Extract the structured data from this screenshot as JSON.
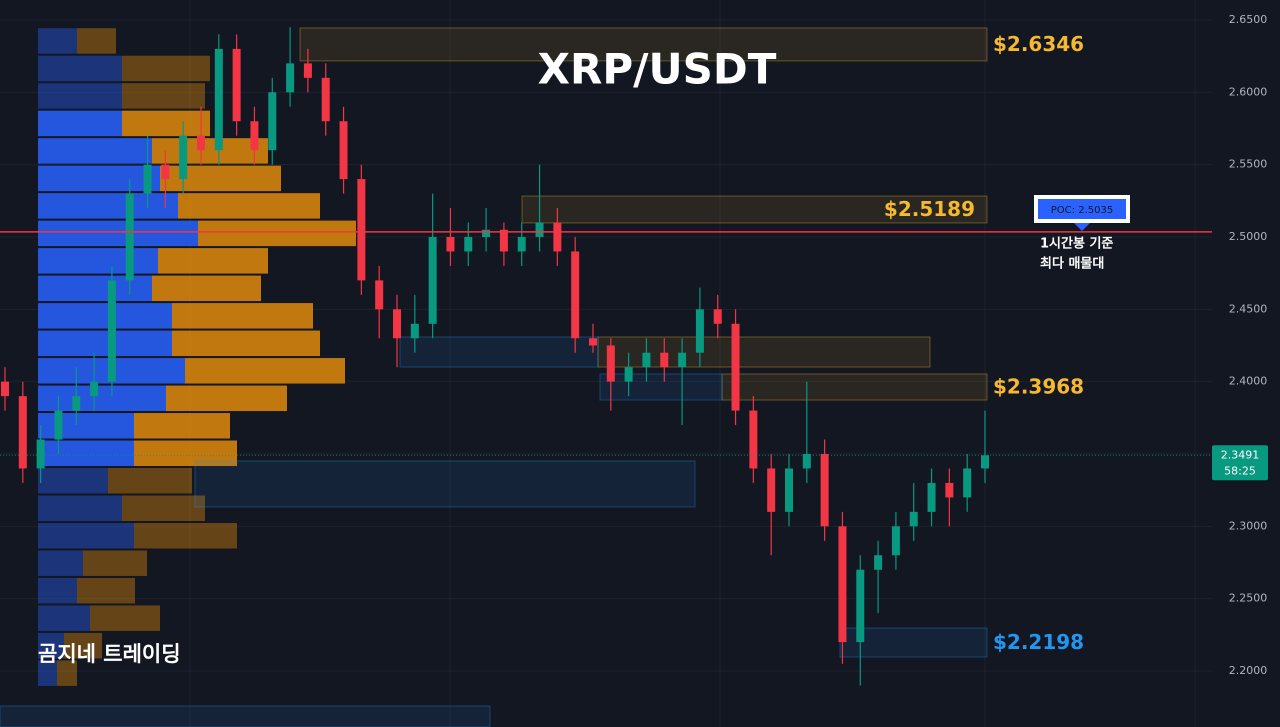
{
  "chart_data": {
    "type": "candlestick",
    "title": "XRP/USDT",
    "watermark": "곰지네 트레이딩",
    "ylim": [
      2.1613,
      2.6638
    ],
    "yticks": [
      {
        "value": 2.2,
        "label": "2.2000"
      },
      {
        "value": 2.25,
        "label": "2.2500"
      },
      {
        "value": 2.3,
        "label": "2.3000"
      },
      {
        "value": 2.35,
        "label": "2.3500"
      },
      {
        "value": 2.4,
        "label": "2.4000"
      },
      {
        "value": 2.45,
        "label": "2.4500"
      },
      {
        "value": 2.5,
        "label": "2.5000"
      },
      {
        "value": 2.55,
        "label": "2.5500"
      },
      {
        "value": 2.6,
        "label": "2.6000"
      },
      {
        "value": 2.65,
        "label": "2.6500"
      }
    ],
    "grid": true,
    "up_color": "#089981",
    "down_color": "#f23645",
    "open": [
      2.4,
      2.39,
      2.34,
      2.36,
      2.38,
      2.39,
      2.4,
      2.47,
      2.53,
      2.55,
      2.54,
      2.57,
      2.56,
      2.63,
      2.58,
      2.56,
      2.6,
      2.62,
      2.61,
      2.58,
      2.54,
      2.47,
      2.45,
      2.43,
      2.44,
      2.5,
      2.49,
      2.5,
      2.505,
      2.49,
      2.5,
      2.51,
      2.49,
      2.43,
      2.425,
      2.4,
      2.41,
      2.42,
      2.41,
      2.42,
      2.45,
      2.44,
      2.38,
      2.34,
      2.31,
      2.34,
      2.35,
      2.3,
      2.22,
      2.27,
      2.28,
      2.3,
      2.31,
      2.33,
      2.32,
      2.34
    ],
    "high": [
      2.41,
      2.4,
      2.37,
      2.39,
      2.41,
      2.42,
      2.48,
      2.54,
      2.57,
      2.56,
      2.58,
      2.59,
      2.64,
      2.64,
      2.59,
      2.61,
      2.645,
      2.63,
      2.62,
      2.59,
      2.55,
      2.48,
      2.46,
      2.46,
      2.53,
      2.52,
      2.51,
      2.52,
      2.51,
      2.51,
      2.55,
      2.52,
      2.5,
      2.44,
      2.43,
      2.42,
      2.43,
      2.43,
      2.43,
      2.465,
      2.46,
      2.45,
      2.39,
      2.35,
      2.35,
      2.4,
      2.36,
      2.31,
      2.28,
      2.29,
      2.31,
      2.33,
      2.34,
      2.34,
      2.35,
      2.38
    ],
    "low": [
      2.38,
      2.33,
      2.33,
      2.35,
      2.37,
      2.38,
      2.39,
      2.46,
      2.52,
      2.52,
      2.53,
      2.55,
      2.55,
      2.57,
      2.55,
      2.55,
      2.59,
      2.6,
      2.57,
      2.53,
      2.46,
      2.43,
      2.41,
      2.42,
      2.43,
      2.48,
      2.48,
      2.49,
      2.48,
      2.48,
      2.49,
      2.48,
      2.42,
      2.42,
      2.38,
      2.39,
      2.4,
      2.4,
      2.37,
      2.41,
      2.43,
      2.37,
      2.33,
      2.28,
      2.3,
      2.33,
      2.29,
      2.205,
      2.19,
      2.24,
      2.27,
      2.29,
      2.3,
      2.3,
      2.31,
      2.33
    ],
    "close": [
      2.39,
      2.34,
      2.36,
      2.38,
      2.39,
      2.4,
      2.47,
      2.53,
      2.55,
      2.54,
      2.57,
      2.56,
      2.63,
      2.58,
      2.56,
      2.6,
      2.62,
      2.61,
      2.58,
      2.54,
      2.47,
      2.45,
      2.43,
      2.44,
      2.5,
      2.49,
      2.5,
      2.505,
      2.49,
      2.5,
      2.51,
      2.49,
      2.43,
      2.425,
      2.4,
      2.41,
      2.42,
      2.41,
      2.42,
      2.45,
      2.44,
      2.38,
      2.34,
      2.31,
      2.34,
      2.35,
      2.3,
      2.22,
      2.27,
      2.28,
      2.3,
      2.31,
      2.33,
      2.32,
      2.34,
      2.3491
    ],
    "current_price": 2.3491,
    "countdown": "58:25",
    "profile": {
      "price_bins": [
        2.645,
        2.626,
        2.607,
        2.588,
        2.569,
        2.55,
        2.531,
        2.512,
        2.493,
        2.474,
        2.455,
        2.436,
        2.417,
        2.398,
        2.379,
        2.36,
        2.341,
        2.322,
        2.303,
        2.284,
        2.265,
        2.246,
        2.227,
        2.208,
        2.189
      ],
      "buy": [
        39,
        84,
        84,
        84,
        114,
        122,
        140,
        160,
        120,
        114,
        134,
        134,
        147,
        128,
        96,
        96,
        70,
        84,
        96,
        45,
        39,
        52,
        26,
        19
      ],
      "sell": [
        39,
        88,
        83,
        88,
        116,
        121,
        142,
        158,
        110,
        109,
        141,
        148,
        160,
        121,
        96,
        103,
        84,
        83,
        103,
        64,
        58,
        70,
        38,
        20
      ],
      "buy_color": "#2962ff",
      "sell_color": "#e08a0b"
    },
    "poc": {
      "value": 2.5035,
      "label": "POC: 2.5035",
      "note": [
        "1시간봉 기준",
        "최다 매물대"
      ],
      "color": "#f23645"
    },
    "zones": [
      {
        "low": 2.6217,
        "high": 2.6445,
        "color": "#f5b82e",
        "label": "$2.6346"
      },
      {
        "low": 2.5097,
        "high": 2.5283,
        "color": "#f5b82e",
        "label": "$2.5189"
      },
      {
        "low": 2.4101,
        "high": 2.4309,
        "color": "#f5b82e"
      },
      {
        "low": 2.3873,
        "high": 2.4053,
        "color": "#f5b82e",
        "label": "$2.3968"
      },
      {
        "low": 2.4101,
        "high": 2.4309,
        "color": "#2196f3"
      },
      {
        "low": 2.3873,
        "high": 2.4053,
        "color": "#2196f3"
      },
      {
        "low": 2.3134,
        "high": 2.3452,
        "color": "#2196f3"
      },
      {
        "low": 2.2097,
        "high": 2.2297,
        "color": "#2196f3",
        "label": "$2.2198"
      },
      {
        "low": 2.1613,
        "high": 2.1758,
        "color": "#2196f3"
      }
    ]
  }
}
